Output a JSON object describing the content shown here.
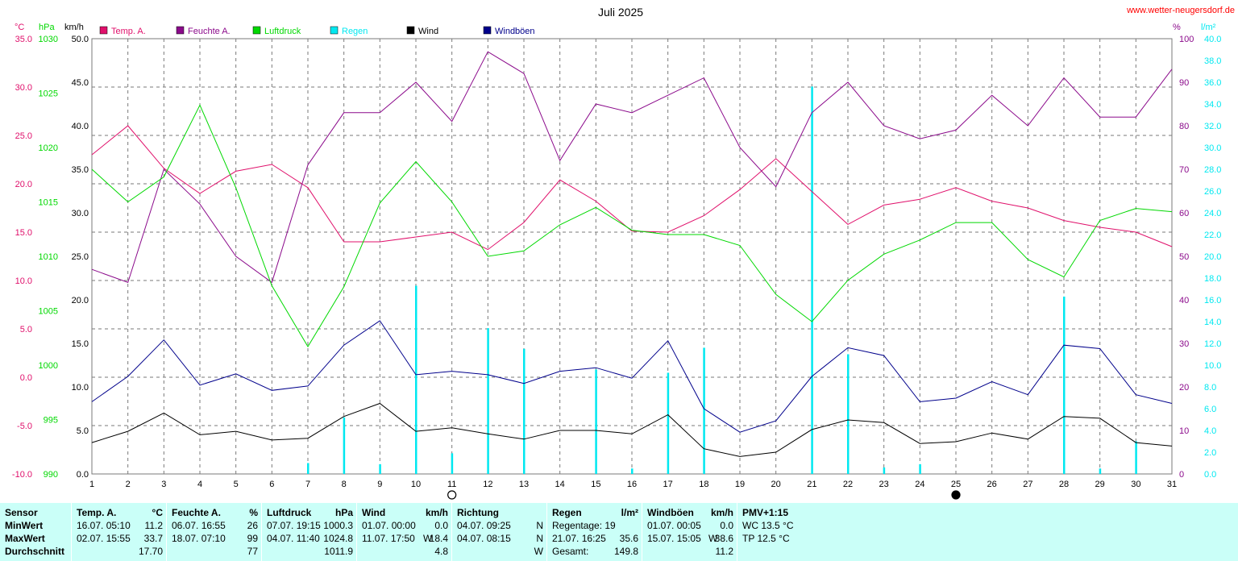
{
  "title": "Juli 2025",
  "website": "www.wetter-neugersdorf.de",
  "colors": {
    "temp": "#e0106b",
    "hum": "#8b0a8b",
    "press": "#00d800",
    "rain": "#00e8f0",
    "wind": "#000000",
    "gust": "#00008b",
    "grid": "#7a7a7a"
  },
  "axis_units": {
    "temp": "°C",
    "press": "hPa",
    "wind": "km/h",
    "hum": "%",
    "rain": "l/m²"
  },
  "legend": [
    {
      "key": "temp",
      "label": "Temp. A."
    },
    {
      "key": "hum",
      "label": "Feuchte A."
    },
    {
      "key": "press",
      "label": "Luftdruck"
    },
    {
      "key": "rain",
      "label": "Regen"
    },
    {
      "key": "wind",
      "label": "Wind"
    },
    {
      "key": "gust",
      "label": "Windböen"
    }
  ],
  "chart_data": {
    "type": "line",
    "title": "Juli 2025",
    "x": [
      1,
      2,
      3,
      4,
      5,
      6,
      7,
      8,
      9,
      10,
      11,
      12,
      13,
      14,
      15,
      16,
      17,
      18,
      19,
      20,
      21,
      22,
      23,
      24,
      25,
      26,
      27,
      28,
      29,
      30,
      31
    ],
    "axes": {
      "temp": {
        "min": -10,
        "max": 35,
        "step": 5,
        "ticks": [
          "35.0",
          "30.0",
          "25.0",
          "20.0",
          "15.0",
          "10.0",
          "5.0",
          "0.0",
          "-5.0",
          "-10.0"
        ]
      },
      "press": {
        "min": 990,
        "max": 1030,
        "step": 5,
        "ticks": [
          "1030",
          "1025",
          "1020",
          "1015",
          "1010",
          "1005",
          "1000",
          "995",
          "990"
        ]
      },
      "wind": {
        "min": 0,
        "max": 50,
        "step": 5,
        "ticks": [
          "50.0",
          "45.0",
          "40.0",
          "35.0",
          "30.0",
          "25.0",
          "20.0",
          "15.0",
          "10.0",
          "5.0",
          "0.0"
        ]
      },
      "hum": {
        "min": 0,
        "max": 100,
        "step": 10,
        "ticks": [
          "100",
          "90",
          "80",
          "70",
          "60",
          "50",
          "40",
          "30",
          "20",
          "10",
          "0"
        ]
      },
      "rain": {
        "min": 0,
        "max": 40,
        "step": 2,
        "ticks": [
          "40.0",
          "38.0",
          "36.0",
          "34.0",
          "32.0",
          "30.0",
          "28.0",
          "26.0",
          "24.0",
          "22.0",
          "20.0",
          "18.0",
          "16.0",
          "14.0",
          "12.0",
          "10.0",
          "8.0",
          "6.0",
          "4.0",
          "2.0",
          "0.0"
        ]
      }
    },
    "series": [
      {
        "name": "Temp. A.",
        "axis": "temp",
        "key": "temp",
        "values": [
          23.0,
          26.0,
          21.6,
          19.0,
          21.3,
          22.0,
          19.6,
          14.0,
          14.0,
          14.5,
          15.0,
          13.2,
          16.0,
          20.4,
          18.2,
          15.1,
          15.0,
          16.7,
          19.4,
          22.6,
          19.2,
          15.8,
          17.8,
          18.4,
          19.6,
          18.2,
          17.5,
          16.2,
          15.5,
          15.0,
          13.5
        ]
      },
      {
        "name": "Feuchte A.",
        "axis": "hum",
        "key": "hum",
        "values": [
          47,
          44,
          70,
          62,
          50,
          44,
          71,
          83,
          83,
          90,
          81,
          97,
          92,
          72,
          85,
          83,
          87,
          91,
          75,
          66,
          83,
          90,
          80,
          77,
          79,
          87,
          80,
          91,
          82,
          82,
          93
        ]
      },
      {
        "name": "Luftdruck",
        "axis": "press",
        "key": "press",
        "values": [
          1018.0,
          1015.0,
          1017.3,
          1023.9,
          1016.3,
          1007.3,
          1001.7,
          1007.2,
          1014.9,
          1018.7,
          1015.0,
          1010.0,
          1010.5,
          1012.9,
          1014.5,
          1012.4,
          1012.0,
          1012.0,
          1011.0,
          1006.5,
          1004.0,
          1007.8,
          1010.2,
          1011.5,
          1013.1,
          1013.1,
          1009.7,
          1008.1,
          1013.3,
          1014.4,
          1014.1
        ]
      },
      {
        "name": "Wind",
        "axis": "wind",
        "key": "wind",
        "values": [
          3.6,
          4.9,
          7.0,
          4.5,
          4.9,
          3.9,
          4.1,
          6.6,
          8.1,
          4.9,
          5.3,
          4.6,
          4.0,
          5.0,
          5.0,
          4.6,
          6.8,
          2.9,
          2.0,
          2.5,
          5.1,
          6.2,
          5.9,
          3.5,
          3.7,
          4.7,
          4.0,
          6.6,
          6.4,
          3.6,
          3.2
        ]
      },
      {
        "name": "Windböen",
        "axis": "wind",
        "key": "gust",
        "values": [
          8.3,
          11.2,
          15.4,
          10.2,
          11.5,
          9.6,
          10.1,
          14.8,
          17.6,
          11.4,
          11.8,
          11.4,
          10.4,
          11.8,
          12.2,
          11.0,
          15.3,
          7.5,
          4.8,
          6.1,
          11.2,
          14.5,
          13.6,
          8.3,
          8.7,
          10.6,
          9.1,
          14.8,
          14.4,
          9.1,
          8.1
        ]
      },
      {
        "name": "Regen",
        "axis": "rain",
        "key": "rain",
        "type": "bar",
        "values": [
          0,
          0,
          0,
          0,
          0,
          0,
          1.0,
          5.2,
          0.9,
          17.3,
          1.9,
          13.4,
          11.5,
          0,
          9.6,
          0.5,
          9.3,
          11.6,
          0,
          0,
          35.6,
          11.0,
          0.6,
          0.9,
          0,
          0,
          0,
          16.3,
          0.5,
          3.0,
          0
        ]
      }
    ],
    "moon_phases": [
      {
        "day": 11,
        "phase": "full"
      },
      {
        "day": 25,
        "phase": "new"
      }
    ],
    "grid": true,
    "legend_position": "top"
  },
  "table": {
    "row_labels": [
      "Sensor",
      "MinWert",
      "MaxWert",
      "Durchschnitt"
    ],
    "sections": [
      {
        "name": "temp-section",
        "header": "Temp. A.",
        "unit": "°C",
        "min": {
          "date": "16.07.",
          "time": "05:10",
          "value": "11.2"
        },
        "max": {
          "date": "02.07.",
          "time": "15:55",
          "value": "33.7"
        },
        "avg": "17.70"
      },
      {
        "name": "humidity-section",
        "header": "Feuchte A.",
        "unit": "%",
        "min": {
          "date": "06.07.",
          "time": "16:55",
          "value": "26"
        },
        "max": {
          "date": "18.07.",
          "time": "07:10",
          "value": "99"
        },
        "avg": "77"
      },
      {
        "name": "pressure-section",
        "header": "Luftdruck",
        "unit": "hPa",
        "min": {
          "date": "07.07.",
          "time": "19:15",
          "value": "1000.3"
        },
        "max": {
          "date": "04.07.",
          "time": "11:40",
          "value": "1024.8"
        },
        "avg": "1011.9"
      },
      {
        "name": "wind-section",
        "header": "Wind",
        "unit": "km/h",
        "min": {
          "date": "01.07.",
          "time": "00:00",
          "value": "0.0"
        },
        "max": {
          "date": "11.07.",
          "time": "17:50",
          "dir": "W",
          "value": "18.4"
        },
        "avg": "4.8"
      },
      {
        "name": "direction-section",
        "header": "Richtung",
        "min": {
          "date": "04.07.",
          "time": "09:25",
          "value": "N"
        },
        "max": {
          "date": "04.07.",
          "time": "08:15",
          "value": "N"
        },
        "avg": "W"
      },
      {
        "name": "rain-section",
        "header": "Regen",
        "unit": "l/m²",
        "min": {
          "label": "Regentage: 19"
        },
        "max": {
          "date": "21.07.",
          "time": "16:25",
          "value": "35.6"
        },
        "avg": {
          "label": "Gesamt:",
          "value": "149.8"
        }
      },
      {
        "name": "gust-section",
        "header": "Windböen",
        "unit": "km/h",
        "min": {
          "date": "01.07.",
          "time": "00:05",
          "value": "0.0"
        },
        "max": {
          "date": "15.07.",
          "time": "15:05",
          "dir": "W",
          "value": "38.6"
        },
        "avg": "11.2"
      },
      {
        "name": "pmv-section",
        "header": "PMV+1:15",
        "lines": [
          "WC 13.5 °C",
          "TP 12.5 °C"
        ]
      }
    ]
  }
}
